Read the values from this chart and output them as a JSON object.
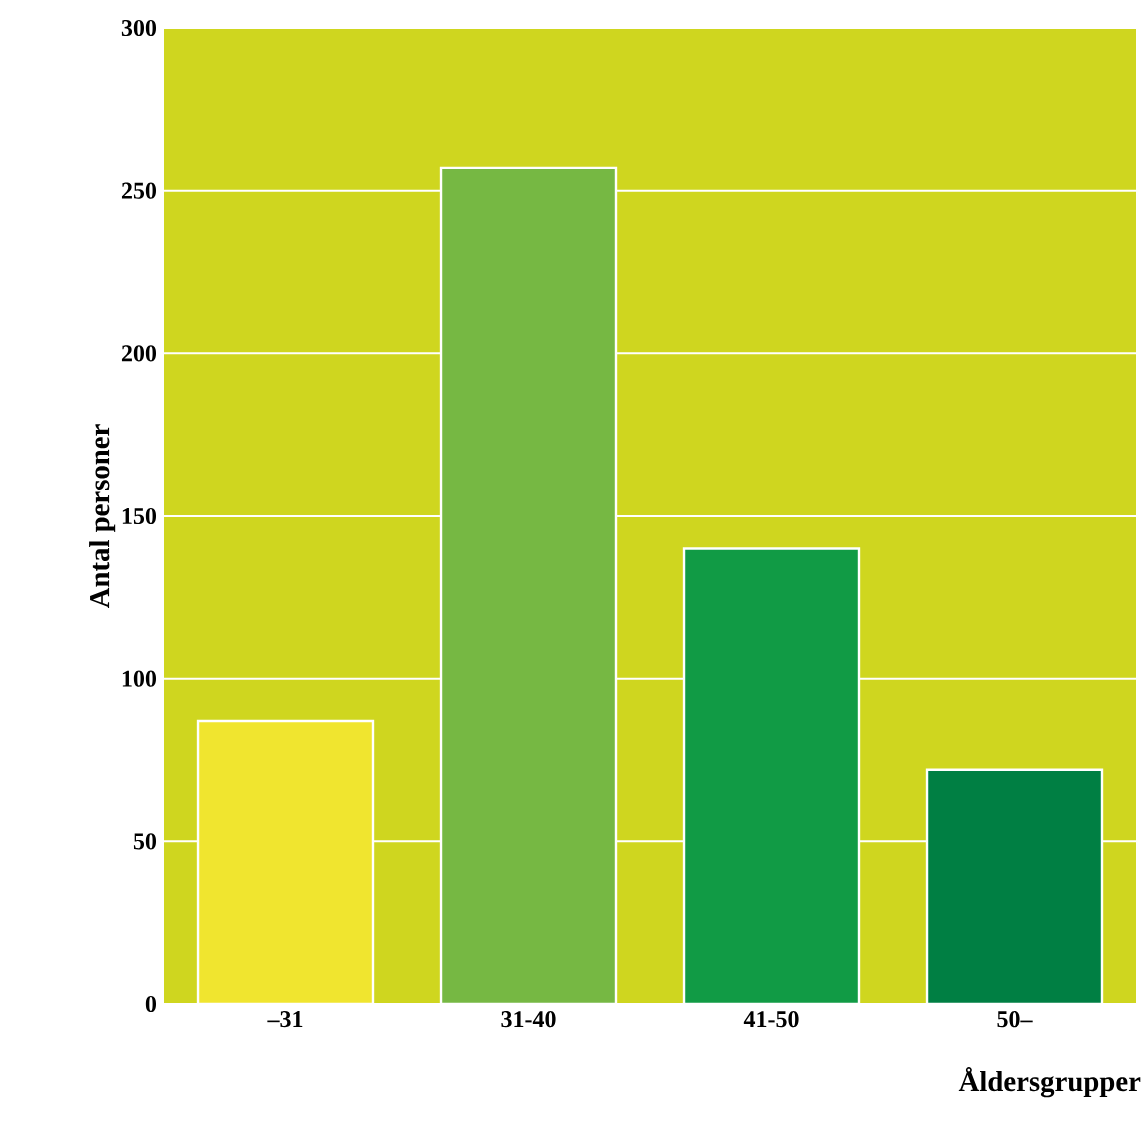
{
  "chart_data": {
    "type": "bar",
    "xlabel": "Åldersgrupper",
    "ylabel": "Antal personer",
    "categories": [
      "–31",
      "31-40",
      "41-50",
      "50–"
    ],
    "values": [
      87,
      257,
      140,
      72
    ],
    "colors": [
      "#f0e52f",
      "#76b843",
      "#119b45",
      "#007f43"
    ],
    "ylim": [
      0,
      300
    ],
    "yticks": [
      0,
      50,
      100,
      150,
      200,
      250,
      300
    ],
    "grid": "y"
  }
}
